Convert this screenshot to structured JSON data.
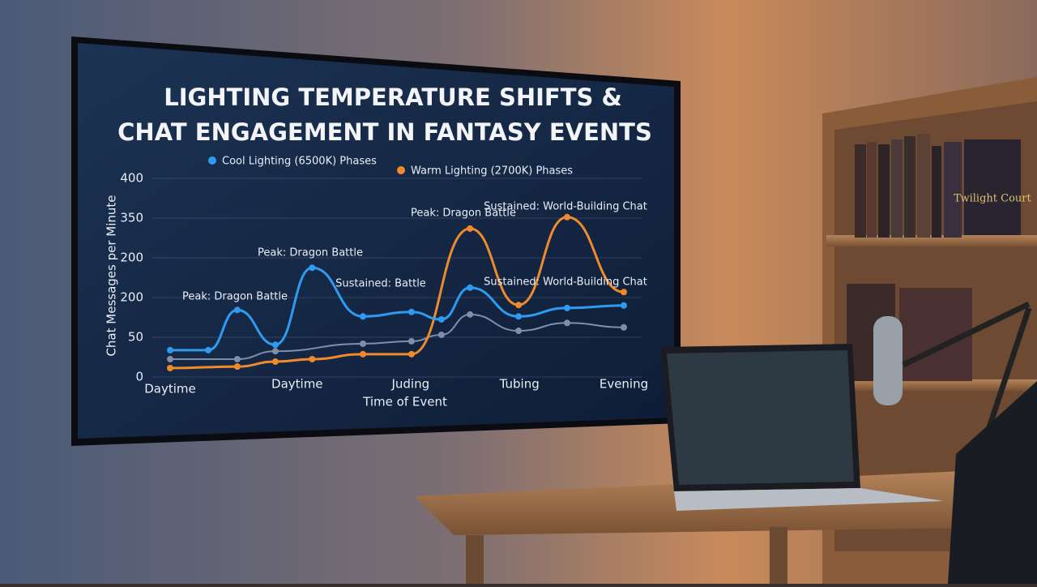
{
  "chart_data": {
    "type": "line",
    "title": [
      "LIGHTING TEMPERATURE SHIFTS &",
      "CHAT ENGAGEMENT IN FANTASY EVENTS"
    ],
    "x_label": "Time of Event",
    "y_label": "Chat Messages per Minute",
    "xlim": [
      0,
      10
    ],
    "ylim": [
      0,
      400
    ],
    "xticks": [
      {
        "value": 0,
        "label": "Daytime"
      },
      {
        "value": 2.8,
        "label": "Daytime"
      },
      {
        "value": 5.3,
        "label": "Juding"
      },
      {
        "value": 7.7,
        "label": "Tubing"
      },
      {
        "value": 10,
        "label": "Evening"
      }
    ],
    "yticks": [
      0,
      {
        "value": 80,
        "label": "50"
      },
      {
        "value": 160,
        "label": "200"
      },
      {
        "value": 240,
        "label": "200"
      },
      {
        "value": 320,
        "label": "350"
      },
      400
    ],
    "grid": true,
    "series": [
      {
        "name": "Cool Lighting (6500K) Phases",
        "color": "#2f9bf0",
        "x": [
          0,
          0.84,
          1.48,
          2.32,
          3.13,
          4.25,
          5.32,
          5.98,
          6.61,
          7.68,
          8.75,
          10
        ],
        "values": [
          54,
          54,
          135,
          65,
          220,
          122,
          131,
          116,
          180,
          122,
          139,
          144
        ]
      },
      {
        "name": "Warm Lighting (2700K) Phases",
        "color": "#f08a2c",
        "x": [
          0,
          1.48,
          2.32,
          3.13,
          4.25,
          5.32,
          6.61,
          7.68,
          8.75,
          10
        ],
        "values": [
          18,
          21,
          31,
          36,
          46,
          46,
          299,
          145,
          322,
          171
        ]
      },
      {
        "color": "#7f8fa8",
        "x": [
          0,
          1.48,
          2.32,
          4.25,
          5.32,
          5.98,
          6.61,
          7.68,
          8.75,
          10
        ],
        "values": [
          36,
          36,
          52,
          67,
          72,
          85,
          126,
          93,
          109,
          100
        ]
      }
    ],
    "annotations": [
      "Peak: Dragon Battle",
      "Peak: Dragon Battle",
      "Peak: Dragon Battle",
      "Sustained: Battle",
      "Sustained: World-Building Chat",
      "Sustained: World-Building Chat"
    ]
  },
  "scene": {
    "book_title": "Twilight Court"
  }
}
